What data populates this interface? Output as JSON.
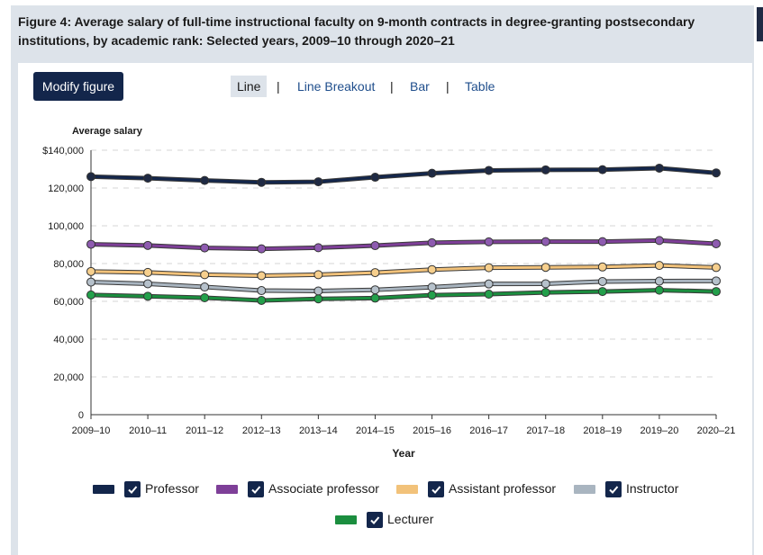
{
  "figure_title": "Figure 4: Average salary of full-time instructional faculty on 9-month contracts in degree-granting postsecondary institutions, by academic rank: Selected years, 2009–10 through 2020–21",
  "toolbar": {
    "modify_label": "Modify figure",
    "tabs": [
      {
        "label": "Line",
        "active": true
      },
      {
        "label": "Line Breakout",
        "active": false
      },
      {
        "label": "Bar",
        "active": false
      },
      {
        "label": "Table",
        "active": false
      }
    ],
    "separator": "|"
  },
  "chart_data": {
    "type": "line",
    "title": "",
    "xlabel": "Year",
    "ylabel": "Average salary",
    "ylim": [
      0,
      140000
    ],
    "yticks": [
      0,
      20000,
      40000,
      60000,
      80000,
      100000,
      120000,
      140000
    ],
    "ytick_labels": [
      "0",
      "20,000",
      "40,000",
      "60,000",
      "80,000",
      "100,000",
      "120,000",
      "$140,000"
    ],
    "grid": true,
    "legend_position": "bottom",
    "categories": [
      "2009–10",
      "2010–11",
      "2011–12",
      "2012–13",
      "2013–14",
      "2014–15",
      "2015–16",
      "2016–17",
      "2017–18",
      "2018–19",
      "2019–20",
      "2020–21"
    ],
    "series": [
      {
        "name": "Professor",
        "color": "#13264b",
        "marker_fill": "#1f2a44",
        "values": [
          126000,
          125200,
          124000,
          123000,
          123300,
          125700,
          127800,
          129300,
          129600,
          129700,
          130500,
          128000
        ]
      },
      {
        "name": "Associate professor",
        "color": "#7e3f98",
        "marker_fill": "#8e5bb0",
        "values": [
          90200,
          89600,
          88300,
          87800,
          88400,
          89500,
          91000,
          91500,
          91600,
          91600,
          92200,
          90500
        ]
      },
      {
        "name": "Assistant professor",
        "color": "#f2c27a",
        "marker_fill": "#f6cf8d",
        "values": [
          75800,
          75300,
          74100,
          73600,
          74100,
          75200,
          76800,
          77800,
          78000,
          78200,
          79000,
          77900
        ]
      },
      {
        "name": "Instructor",
        "color": "#a9b5c0",
        "marker_fill": "#b6c1cb",
        "values": [
          70200,
          69300,
          67600,
          65700,
          65500,
          66100,
          67500,
          69200,
          69300,
          70500,
          70700,
          70800
        ]
      },
      {
        "name": "Lecturer",
        "color": "#1b8e3f",
        "marker_fill": "#23a04b",
        "values": [
          63400,
          62700,
          61900,
          60500,
          61300,
          61700,
          63300,
          63800,
          64700,
          65200,
          65900,
          65200
        ]
      }
    ]
  }
}
